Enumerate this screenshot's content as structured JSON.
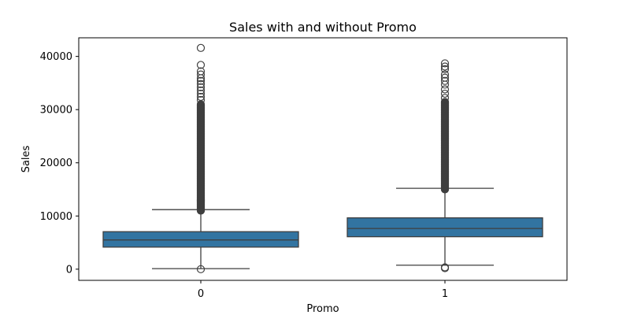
{
  "chart_data": {
    "type": "box",
    "title": "Sales with and without Promo",
    "xlabel": "Promo",
    "ylabel": "Sales",
    "ylim": [
      -2100,
      43500
    ],
    "y_ticks": [
      0,
      10000,
      20000,
      30000,
      40000
    ],
    "y_tick_labels": [
      "0",
      "10000",
      "20000",
      "30000",
      "40000"
    ],
    "categories": [
      "0",
      "1"
    ],
    "box_color": "#3274a1",
    "line_color": "#3f3f3f",
    "grid": false,
    "boxes": [
      {
        "category": "0",
        "whisker_low": 100,
        "q1": 4150,
        "median": 5500,
        "q3": 7050,
        "whisker_high": 11200,
        "outliers_low": [
          0
        ],
        "outlier_band": [
          11000,
          31000
        ],
        "outliers_high": [
          31800,
          32400,
          33000,
          33600,
          34200,
          34800,
          35400,
          35900,
          36600,
          37200,
          38400,
          41600
        ]
      },
      {
        "category": "1",
        "whisker_low": 750,
        "q1": 6100,
        "median": 7650,
        "q3": 9650,
        "whisker_high": 15200,
        "outliers_low": [
          200,
          350
        ],
        "outlier_band": [
          15000,
          31500
        ],
        "outliers_high": [
          32200,
          33000,
          33800,
          34700,
          35400,
          36000,
          36600,
          37600,
          38100,
          38700
        ]
      }
    ]
  }
}
